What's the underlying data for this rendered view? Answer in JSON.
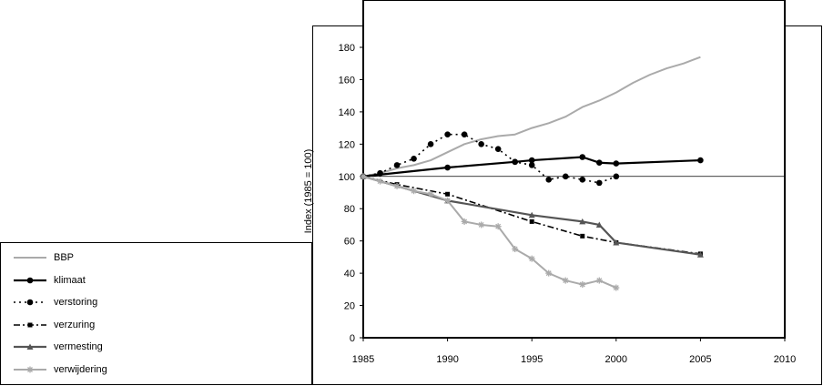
{
  "chart_data": {
    "type": "line",
    "xlabel": "",
    "ylabel": "Index (1985 = 100)",
    "xlim": [
      1985,
      2010
    ],
    "ylim": [
      0,
      180
    ],
    "xticks": [
      1985,
      1990,
      1995,
      2000,
      2005,
      2010
    ],
    "yticks": [
      0,
      20,
      40,
      60,
      80,
      100,
      120,
      140,
      160,
      180
    ],
    "reference_line": 100,
    "legend_position": "bottom-left outside",
    "series": [
      {
        "name": "BBP",
        "color": "#aaaaaa",
        "marker": "none",
        "dash": "solid",
        "x": [
          1985,
          1986,
          1987,
          1988,
          1989,
          1990,
          1991,
          1992,
          1993,
          1994,
          1995,
          1996,
          1997,
          1998,
          1999,
          2000,
          2001,
          2002,
          2003,
          2004,
          2005
        ],
        "y": [
          100,
          102,
          105,
          107,
          110,
          115,
          120,
          123,
          125,
          126,
          130,
          133,
          137,
          143,
          147,
          152,
          158,
          163,
          167,
          170,
          174
        ]
      },
      {
        "name": "klimaat",
        "color": "#000000",
        "marker": "circle",
        "dash": "solid",
        "x": [
          1985,
          1990,
          1994,
          1995,
          1998,
          1999,
          2000,
          2005
        ],
        "y": [
          100,
          105.5,
          109,
          110,
          112,
          108.5,
          108,
          110
        ]
      },
      {
        "name": "verstoring",
        "color": "#000000",
        "marker": "circle",
        "dash": "dotted",
        "x": [
          1985,
          1986,
          1987,
          1988,
          1989,
          1990,
          1991,
          1992,
          1993,
          1994,
          1995,
          1996,
          1997,
          1998,
          1999,
          2000
        ],
        "y": [
          100,
          102,
          107,
          111,
          120,
          126,
          126,
          120,
          117,
          109,
          107,
          98,
          100,
          98,
          96,
          100
        ]
      },
      {
        "name": "verzuring",
        "color": "#000000",
        "marker": "square",
        "dash": "dashdot",
        "x": [
          1985,
          1987,
          1990,
          1995,
          1998,
          2000,
          2005
        ],
        "y": [
          100,
          95,
          89,
          72,
          63,
          59,
          52
        ]
      },
      {
        "name": "vermesting",
        "color": "#555555",
        "marker": "triangle",
        "dash": "solid",
        "x": [
          1985,
          1990,
          1995,
          1998,
          1999,
          2000,
          2005
        ],
        "y": [
          100,
          85,
          76,
          72,
          70,
          59,
          51.5
        ]
      },
      {
        "name": "verwijdering",
        "color": "#aaaaaa",
        "marker": "star",
        "dash": "solid",
        "x": [
          1985,
          1986,
          1987,
          1988,
          1989,
          1990,
          1991,
          1992,
          1993,
          1994,
          1995,
          1996,
          1997,
          1998,
          1999,
          2000
        ],
        "y": [
          100,
          97,
          94,
          91,
          89,
          85,
          72,
          70,
          69,
          55,
          49,
          40,
          35.5,
          33,
          35.5,
          31
        ]
      }
    ]
  }
}
